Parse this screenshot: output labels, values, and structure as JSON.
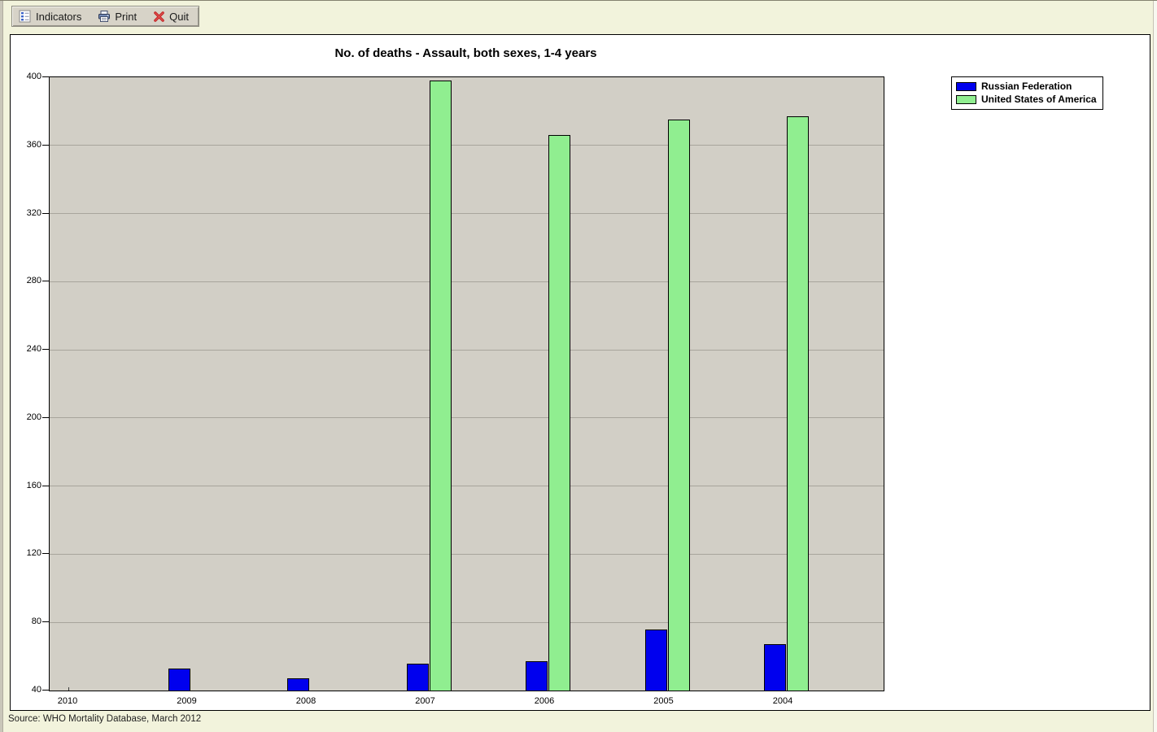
{
  "toolbar": {
    "indicators_label": "Indicators",
    "print_label": "Print",
    "quit_label": "Quit"
  },
  "chart_data": {
    "type": "bar",
    "title": "No. of deaths - Assault, both sexes, 1-4 years",
    "categories": [
      "2010",
      "2009",
      "2008",
      "2007",
      "2006",
      "2005",
      "2004"
    ],
    "series": [
      {
        "name": "Russian Federation",
        "color": "#0000ee",
        "values": [
          null,
          53,
          47,
          56,
          57,
          76,
          67
        ]
      },
      {
        "name": "United States of America",
        "color": "#90ee90",
        "values": [
          null,
          null,
          null,
          398,
          366,
          375,
          377
        ]
      }
    ],
    "ylim": [
      40,
      400
    ],
    "ytick_step": 40,
    "xlabel": "",
    "ylabel": "",
    "grid": true,
    "legend_position": "top-right"
  },
  "source_note": "Source: WHO Mortality Database, March 2012",
  "colors": {
    "window_bg": "#f2f3dc",
    "plot_bg": "#d2cfc6",
    "russia_bar": "#0000ee",
    "usa_bar": "#90ee90"
  }
}
